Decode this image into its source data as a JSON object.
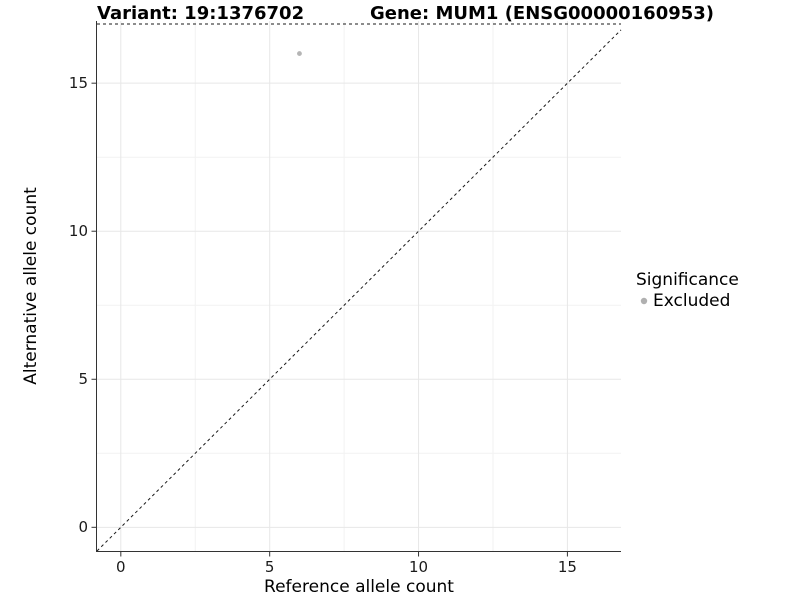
{
  "figure": {
    "title_left": "Variant: 19:1376702",
    "title_right": "Gene: MUM1 (ENSG00000160953)"
  },
  "legend": {
    "title": "Significance",
    "items": [
      {
        "label": "Excluded",
        "color": "#b0b0b0"
      }
    ]
  },
  "colors": {
    "background": "#ffffff",
    "axis_line": "#333333",
    "tick_mark": "#333333",
    "grid_major": "#e7e7e7",
    "grid_minor": "#f2f2f2",
    "dashed_line": "#1a1a1a",
    "point": "#b5b5b5",
    "text": "#000000"
  },
  "chart_data": {
    "type": "scatter",
    "title": "Variant: 19:1376702   Gene: MUM1 (ENSG00000160953)",
    "xlabel": "Reference allele count",
    "ylabel": "Alternative allele count",
    "xlim": [
      -0.8,
      16.8
    ],
    "ylim": [
      -0.8,
      17.1
    ],
    "x_major_ticks": [
      0,
      5,
      10,
      15
    ],
    "y_major_ticks": [
      0,
      5,
      10,
      15
    ],
    "x_minor_ticks": [
      2.5,
      7.5,
      12.5
    ],
    "y_minor_ticks": [
      2.5,
      7.5,
      12.5
    ],
    "grid": "major+minor",
    "legend_position": "right",
    "series": [
      {
        "name": "Excluded",
        "color": "#b5b5b5",
        "points": [
          {
            "x": 6,
            "y": 16
          }
        ]
      }
    ],
    "reference_lines": [
      {
        "kind": "abline",
        "slope": 1,
        "intercept": 0,
        "linetype": "dashed"
      },
      {
        "kind": "hline",
        "y": 17,
        "linetype": "dashed"
      }
    ]
  }
}
